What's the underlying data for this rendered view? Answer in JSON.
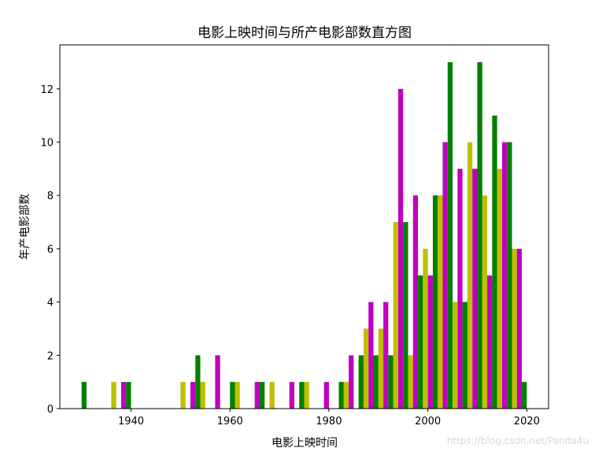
{
  "chart_data": {
    "type": "bar",
    "title": "电影上映时间与所产电影部数直方图",
    "xlabel": "电影上映时间",
    "ylabel": "年产电影部数",
    "xlim": [
      1925.6,
      2024.4
    ],
    "ylim": [
      0,
      13.65
    ],
    "xticks": [
      1940,
      1960,
      1980,
      2000,
      2020
    ],
    "yticks": [
      0,
      2,
      4,
      6,
      8,
      10,
      12
    ],
    "bin_width": 1,
    "grid": false,
    "colors": [
      "#008000",
      "#bfbf00",
      "#bf00bf"
    ],
    "bars": [
      {
        "x": 1930,
        "y": 1
      },
      {
        "x": 1936,
        "y": 1
      },
      {
        "x": 1938,
        "y": 1
      },
      {
        "x": 1939,
        "y": 1
      },
      {
        "x": 1950,
        "y": 1
      },
      {
        "x": 1952,
        "y": 1
      },
      {
        "x": 1953,
        "y": 2
      },
      {
        "x": 1954,
        "y": 1
      },
      {
        "x": 1957,
        "y": 2
      },
      {
        "x": 1960,
        "y": 1
      },
      {
        "x": 1961,
        "y": 1
      },
      {
        "x": 1965,
        "y": 1
      },
      {
        "x": 1966,
        "y": 1
      },
      {
        "x": 1968,
        "y": 1
      },
      {
        "x": 1972,
        "y": 1
      },
      {
        "x": 1974,
        "y": 1
      },
      {
        "x": 1975,
        "y": 1
      },
      {
        "x": 1979,
        "y": 1
      },
      {
        "x": 1982,
        "y": 1
      },
      {
        "x": 1983,
        "y": 1
      },
      {
        "x": 1984,
        "y": 2
      },
      {
        "x": 1986,
        "y": 2
      },
      {
        "x": 1987,
        "y": 3
      },
      {
        "x": 1988,
        "y": 4
      },
      {
        "x": 1989,
        "y": 2
      },
      {
        "x": 1990,
        "y": 3
      },
      {
        "x": 1991,
        "y": 4
      },
      {
        "x": 1992,
        "y": 2
      },
      {
        "x": 1993,
        "y": 7
      },
      {
        "x": 1994,
        "y": 12
      },
      {
        "x": 1995,
        "y": 7
      },
      {
        "x": 1996,
        "y": 2
      },
      {
        "x": 1997,
        "y": 8
      },
      {
        "x": 1998,
        "y": 5
      },
      {
        "x": 1999,
        "y": 6
      },
      {
        "x": 2000,
        "y": 5
      },
      {
        "x": 2001,
        "y": 8
      },
      {
        "x": 2002,
        "y": 8
      },
      {
        "x": 2003,
        "y": 10
      },
      {
        "x": 2004,
        "y": 13
      },
      {
        "x": 2005,
        "y": 4
      },
      {
        "x": 2006,
        "y": 9
      },
      {
        "x": 2007,
        "y": 4
      },
      {
        "x": 2008,
        "y": 10
      },
      {
        "x": 2009,
        "y": 9
      },
      {
        "x": 2010,
        "y": 13
      },
      {
        "x": 2011,
        "y": 8
      },
      {
        "x": 2012,
        "y": 5
      },
      {
        "x": 2013,
        "y": 11
      },
      {
        "x": 2014,
        "y": 9
      },
      {
        "x": 2015,
        "y": 10
      },
      {
        "x": 2016,
        "y": 10
      },
      {
        "x": 2017,
        "y": 6
      },
      {
        "x": 2018,
        "y": 6
      },
      {
        "x": 2019,
        "y": 1
      }
    ]
  },
  "watermark": "https://blog.csdn.net/Panda4u"
}
